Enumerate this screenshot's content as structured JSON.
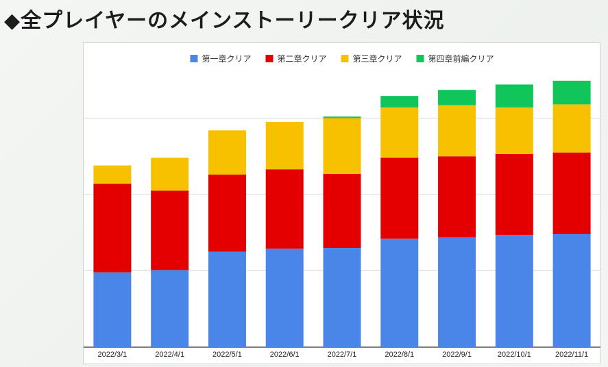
{
  "page": {
    "title": "◆全プレイヤーのメインストーリークリア状況"
  },
  "chart_data": {
    "type": "bar",
    "stacked": true,
    "categories": [
      "2022/3/1",
      "2022/4/1",
      "2022/5/1",
      "2022/6/1",
      "2022/7/1",
      "2022/8/1",
      "2022/9/1",
      "2022/10/1",
      "2022/11/1"
    ],
    "series": [
      {
        "name": "第一章クリア",
        "color": "#4a86e8",
        "values": [
          98,
          101,
          125,
          129,
          130,
          142,
          144,
          147,
          148
        ]
      },
      {
        "name": "第二章クリア",
        "color": "#e50000",
        "values": [
          116,
          104,
          101,
          104,
          97,
          106,
          106,
          106,
          107
        ]
      },
      {
        "name": "第三章クリア",
        "color": "#f7c100",
        "values": [
          24,
          43,
          58,
          62,
          73,
          66,
          67,
          61,
          63
        ]
      },
      {
        "name": "第四章前編クリア",
        "color": "#10c55a",
        "values": [
          0,
          0,
          0,
          0,
          2,
          15,
          20,
          30,
          31
        ]
      }
    ],
    "ylim": [
      0,
      350
    ],
    "gridlines": [
      0,
      100,
      200,
      300
    ],
    "grid": true,
    "y_tick_labels_visible": false,
    "legend": "top-center"
  }
}
